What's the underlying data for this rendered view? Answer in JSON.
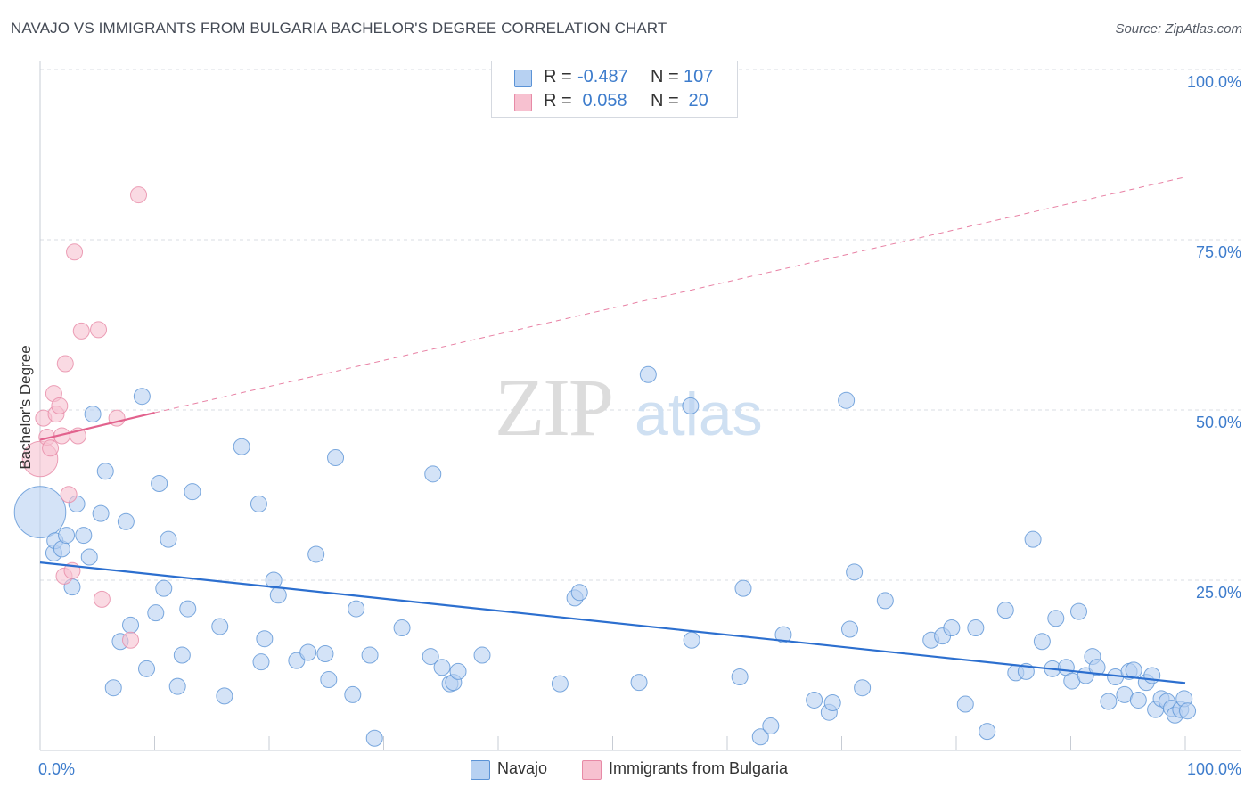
{
  "title": "NAVAJO VS IMMIGRANTS FROM BULGARIA BACHELOR'S DEGREE CORRELATION CHART",
  "source": "Source: ZipAtlas.com",
  "watermark": {
    "zip": "ZIP",
    "atlas": "atlas"
  },
  "colors": {
    "navajo_fill": "#b7d1f2",
    "navajo_stroke": "#5b93d6",
    "navajo_line": "#2c6fcf",
    "bulgaria_fill": "#f7c1d0",
    "bulgaria_stroke": "#e78aa6",
    "bulgaria_line": "#e2628d",
    "axis_text": "#3d7ccc",
    "grid": "#d9dde3"
  },
  "legend_top": {
    "rows": [
      {
        "label": "R = ",
        "r": "-0.487",
        "n_label": "N = ",
        "n": "107",
        "series": "navajo"
      },
      {
        "label": "R = ",
        "r": " 0.058",
        "n_label": "N = ",
        "n": " 20",
        "series": "bulgaria"
      }
    ]
  },
  "legend_bottom": {
    "navajo": "Navajo",
    "bulgaria": "Immigrants from Bulgaria"
  },
  "chart_data": {
    "type": "scatter",
    "title": "NAVAJO VS IMMIGRANTS FROM BULGARIA BACHELOR'S DEGREE CORRELATION CHART",
    "xlabel": "",
    "ylabel": "Bachelor's Degree",
    "xlim": [
      0,
      100
    ],
    "ylim": [
      0,
      100
    ],
    "x_tick_labels": [
      "0.0%",
      "100.0%"
    ],
    "y_tick_labels": [
      "100.0%",
      "75.0%",
      "50.0%",
      "25.0%"
    ],
    "y_ticks": [
      100,
      75,
      50,
      25
    ],
    "grid": true,
    "series": [
      {
        "name": "Navajo",
        "R": -0.487,
        "N": 107,
        "trendline": {
          "x": [
            0,
            100
          ],
          "y": [
            27.6,
            9.9
          ]
        },
        "points": [
          [
            0.0,
            35.0,
            3.2
          ],
          [
            1.2,
            29.0,
            1
          ],
          [
            1.3,
            30.8,
            1
          ],
          [
            1.9,
            29.6,
            1
          ],
          [
            2.3,
            31.6,
            1
          ],
          [
            2.8,
            24.0,
            1
          ],
          [
            3.2,
            36.2,
            1
          ],
          [
            3.8,
            31.6,
            1
          ],
          [
            4.3,
            28.4,
            1
          ],
          [
            4.6,
            49.4,
            1
          ],
          [
            5.3,
            34.8,
            1
          ],
          [
            5.7,
            41.0,
            1
          ],
          [
            6.4,
            9.2,
            1
          ],
          [
            7.0,
            16.0,
            1
          ],
          [
            7.5,
            33.6,
            1
          ],
          [
            7.9,
            18.4,
            1
          ],
          [
            8.9,
            52.0,
            1
          ],
          [
            9.3,
            12.0,
            1
          ],
          [
            10.1,
            20.2,
            1
          ],
          [
            10.4,
            39.2,
            1
          ],
          [
            10.8,
            23.8,
            1
          ],
          [
            11.2,
            31.0,
            1
          ],
          [
            12.0,
            9.4,
            1
          ],
          [
            12.4,
            14.0,
            1
          ],
          [
            12.9,
            20.8,
            1
          ],
          [
            13.3,
            38.0,
            1
          ],
          [
            15.7,
            18.2,
            1
          ],
          [
            16.1,
            8.0,
            1
          ],
          [
            17.6,
            44.6,
            1
          ],
          [
            19.1,
            36.2,
            1
          ],
          [
            19.3,
            13.0,
            1
          ],
          [
            19.6,
            16.4,
            1
          ],
          [
            20.4,
            25.0,
            1
          ],
          [
            20.8,
            22.8,
            1
          ],
          [
            22.4,
            13.2,
            1
          ],
          [
            23.4,
            14.4,
            1
          ],
          [
            24.1,
            28.8,
            1
          ],
          [
            24.9,
            14.2,
            1
          ],
          [
            25.2,
            10.4,
            1
          ],
          [
            25.8,
            43.0,
            1
          ],
          [
            27.3,
            8.2,
            1
          ],
          [
            27.6,
            20.8,
            1
          ],
          [
            28.8,
            14.0,
            1
          ],
          [
            29.2,
            1.8,
            1
          ],
          [
            31.6,
            18.0,
            1
          ],
          [
            34.1,
            13.8,
            1
          ],
          [
            34.3,
            40.6,
            1
          ],
          [
            35.1,
            12.2,
            1
          ],
          [
            35.8,
            9.8,
            1
          ],
          [
            36.1,
            10.0,
            1
          ],
          [
            36.5,
            11.6,
            1
          ],
          [
            38.6,
            14.0,
            1
          ],
          [
            45.4,
            9.8,
            1
          ],
          [
            46.7,
            22.4,
            1
          ],
          [
            47.1,
            23.2,
            1
          ],
          [
            52.3,
            10.0,
            1
          ],
          [
            53.1,
            55.2,
            1
          ],
          [
            56.8,
            50.6,
            1
          ],
          [
            56.9,
            16.2,
            1
          ],
          [
            61.1,
            10.8,
            1
          ],
          [
            61.4,
            23.8,
            1
          ],
          [
            62.9,
            2.0,
            1
          ],
          [
            63.8,
            3.6,
            1
          ],
          [
            64.9,
            17.0,
            1
          ],
          [
            67.6,
            7.4,
            1
          ],
          [
            68.9,
            5.6,
            1
          ],
          [
            69.2,
            7.0,
            1
          ],
          [
            70.4,
            51.4,
            1
          ],
          [
            70.7,
            17.8,
            1
          ],
          [
            71.1,
            26.2,
            1
          ],
          [
            71.8,
            9.2,
            1
          ],
          [
            73.8,
            22.0,
            1
          ],
          [
            77.8,
            16.2,
            1
          ],
          [
            78.8,
            16.8,
            1
          ],
          [
            79.6,
            18.0,
            1
          ],
          [
            80.8,
            6.8,
            1
          ],
          [
            81.7,
            18.0,
            1
          ],
          [
            82.7,
            2.8,
            1
          ],
          [
            84.3,
            20.6,
            1
          ],
          [
            85.2,
            11.4,
            1
          ],
          [
            86.1,
            11.6,
            1
          ],
          [
            86.7,
            31.0,
            1
          ],
          [
            87.5,
            16.0,
            1
          ],
          [
            88.4,
            12.0,
            1
          ],
          [
            88.7,
            19.4,
            1
          ],
          [
            89.6,
            12.2,
            1
          ],
          [
            90.1,
            10.2,
            1
          ],
          [
            90.7,
            20.4,
            1
          ],
          [
            91.3,
            11.0,
            1
          ],
          [
            91.9,
            13.8,
            1
          ],
          [
            92.3,
            12.2,
            1
          ],
          [
            93.3,
            7.2,
            1
          ],
          [
            93.9,
            10.8,
            1
          ],
          [
            94.7,
            8.2,
            1
          ],
          [
            95.1,
            11.6,
            1
          ],
          [
            95.5,
            11.8,
            1
          ],
          [
            95.9,
            7.4,
            1
          ],
          [
            96.6,
            10.0,
            1
          ],
          [
            97.1,
            11.0,
            1
          ],
          [
            97.4,
            6.0,
            1
          ],
          [
            97.9,
            7.6,
            1
          ],
          [
            98.4,
            7.2,
            1
          ],
          [
            98.8,
            6.2,
            1
          ],
          [
            99.1,
            5.2,
            1
          ],
          [
            99.6,
            6.0,
            1
          ],
          [
            99.9,
            7.6,
            1
          ],
          [
            100.2,
            5.8,
            1
          ]
        ]
      },
      {
        "name": "Immigrants from Bulgaria",
        "R": 0.058,
        "N": 20,
        "trendline": {
          "x": [
            0,
            10
          ],
          "y": [
            45.6,
            49.6
          ],
          "dashed_extension": {
            "x": [
              10,
              100
            ],
            "y": [
              49.6,
              84.2
            ]
          }
        },
        "points": [
          [
            0.0,
            42.8,
            2.2
          ],
          [
            0.3,
            48.8,
            1
          ],
          [
            0.6,
            46.0,
            1
          ],
          [
            0.9,
            44.4,
            1
          ],
          [
            1.2,
            52.4,
            1
          ],
          [
            1.4,
            49.4,
            1
          ],
          [
            1.7,
            50.6,
            1
          ],
          [
            1.9,
            46.2,
            1
          ],
          [
            2.1,
            25.6,
            1
          ],
          [
            2.2,
            56.8,
            1
          ],
          [
            2.5,
            37.6,
            1
          ],
          [
            2.8,
            26.4,
            1
          ],
          [
            3.0,
            73.2,
            1
          ],
          [
            3.3,
            46.2,
            1
          ],
          [
            3.6,
            61.6,
            1
          ],
          [
            5.1,
            61.8,
            1
          ],
          [
            5.4,
            22.2,
            1
          ],
          [
            6.7,
            48.8,
            1
          ],
          [
            7.9,
            16.2,
            1
          ],
          [
            8.6,
            81.6,
            1
          ]
        ]
      }
    ]
  }
}
